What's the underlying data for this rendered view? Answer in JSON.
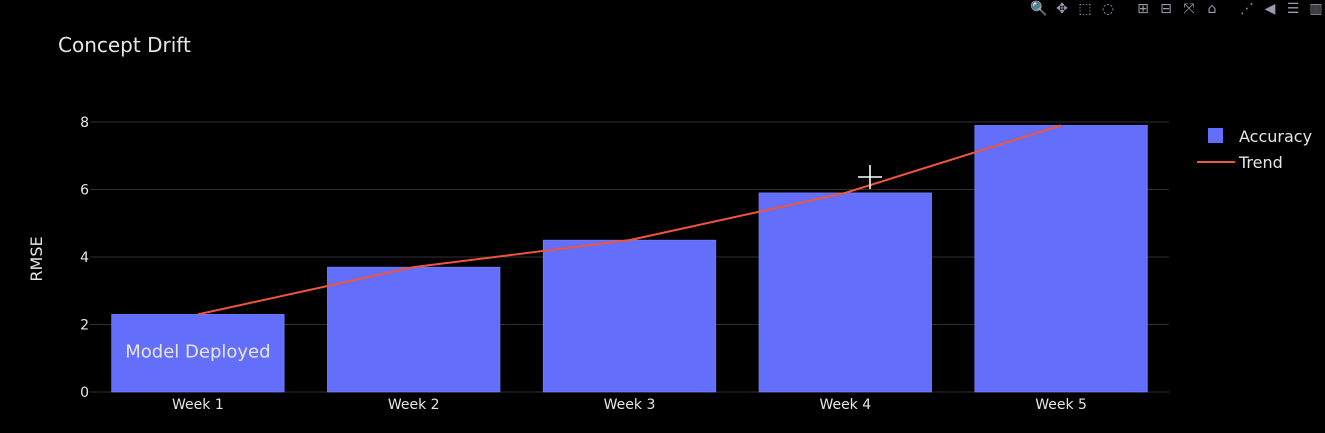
{
  "colors": {
    "background": "#000000",
    "bar": "#636EFA",
    "bar_border": "#7a84ff",
    "trend": "#EF553B",
    "grid": "#2e2e38",
    "text": "#e6e6e6",
    "modebar_icon": "#9a9ab0"
  },
  "modebar": [
    {
      "name": "zoom-icon",
      "glyph": "🔍"
    },
    {
      "name": "pan-icon",
      "glyph": "✥"
    },
    {
      "name": "box-select-icon",
      "glyph": "⬚"
    },
    {
      "name": "lasso-select-icon",
      "glyph": "◌"
    },
    {
      "name": "zoom-in-icon",
      "glyph": "⊞"
    },
    {
      "name": "zoom-out-icon",
      "glyph": "⊟"
    },
    {
      "name": "autoscale-icon",
      "glyph": "⤧"
    },
    {
      "name": "reset-axes-icon",
      "glyph": "⌂"
    },
    {
      "name": "spike-lines-icon",
      "glyph": "⋰"
    },
    {
      "name": "hover-closest-icon",
      "glyph": "◀"
    },
    {
      "name": "hover-compare-icon",
      "glyph": "☰"
    },
    {
      "name": "plotly-logo-icon",
      "glyph": "▥"
    }
  ],
  "chart_data": {
    "type": "bar",
    "title": "Concept Drift",
    "xlabel": "",
    "ylabel": "RMSE",
    "categories": [
      "Week 1",
      "Week 2",
      "Week 3",
      "Week 4",
      "Week 5"
    ],
    "series": [
      {
        "name": "Accuracy",
        "type": "bar",
        "values": [
          2.3,
          3.7,
          4.5,
          5.9,
          7.9
        ]
      },
      {
        "name": "Trend",
        "type": "line",
        "values": [
          2.3,
          3.7,
          4.5,
          5.9,
          7.9
        ]
      }
    ],
    "ylim": [
      0,
      8.8
    ],
    "yticks": [
      0,
      2,
      4,
      6,
      8
    ],
    "grid": true,
    "legend_position": "top-right",
    "annotations": [
      {
        "text": "Model Deployed",
        "category": "Week 1",
        "y": 1.2
      }
    ]
  }
}
